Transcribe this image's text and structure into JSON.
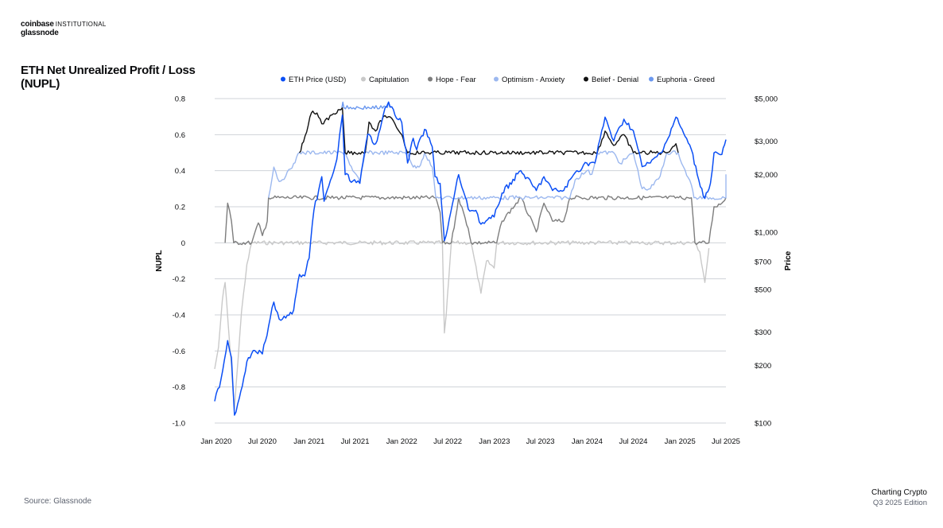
{
  "brand": {
    "line1_bold": "coinbase",
    "line1_light": "INSTITUTIONAL",
    "line2": "glassnode"
  },
  "title": "ETH Net Unrealized Profit / Loss (NUPL)",
  "source": "Source: Glassnode",
  "footer": {
    "line1": "Charting Crypto",
    "line2": "Q3 2025 Edition"
  },
  "colors": {
    "eth_price": "#0b4ff5",
    "capitulation": "#c9c9c9",
    "hope_fear": "#7d7d7d",
    "optimism_anxiety": "#9cb8ef",
    "belief_denial": "#111111",
    "euphoria_greed": "#6b98ef",
    "grid": "#cfd3d8",
    "text": "#0a0b0d"
  },
  "chart_data": {
    "type": "line",
    "x_start": "2019-12-26",
    "x_end": "2025-07-01",
    "x_tick_labels": [
      "Jan 2020",
      "Jul 2020",
      "Jan 2021",
      "Jul 2021",
      "Jan 2022",
      "Jul 2022",
      "Jan 2023",
      "Jul 2023",
      "Jan 2024",
      "Jul 2024",
      "Jan 2025",
      "Jul 2025"
    ],
    "x_tick_dates": [
      "2020-01-01",
      "2020-07-01",
      "2021-01-01",
      "2021-07-01",
      "2022-01-01",
      "2022-07-01",
      "2023-01-01",
      "2023-07-01",
      "2024-01-01",
      "2024-07-01",
      "2025-01-01",
      "2025-07-01"
    ],
    "y_left": {
      "label": "NUPL",
      "range": [
        -1.0,
        0.8
      ],
      "ticks": [
        0.8,
        0.6,
        0.4,
        0.2,
        0,
        -0.2,
        -0.4,
        -0.6,
        -0.8,
        -1.0
      ],
      "tick_labels": [
        "0.8",
        "0.6",
        "0.4",
        "0.2",
        "0",
        "-0.2",
        "-0.4",
        "-0.6",
        "-0.8",
        "-1.0"
      ]
    },
    "y_right": {
      "label": "Price",
      "scale": "log",
      "range": [
        100,
        5000
      ],
      "ticks": [
        5000,
        3000,
        2000,
        1000,
        700,
        500,
        300,
        200,
        100
      ],
      "tick_labels": [
        "$5,000",
        "$3,000",
        "$2,000",
        "$1,000",
        "$700",
        "$500",
        "$300",
        "$200",
        "$100"
      ]
    },
    "legend_position": "top",
    "series": [
      {
        "name": "ETH Price (USD)",
        "axis": "right",
        "color_key": "eth_price",
        "points": [
          [
            "2019-12-26",
            130
          ],
          [
            "2020-01-20",
            170
          ],
          [
            "2020-02-15",
            270
          ],
          [
            "2020-03-01",
            220
          ],
          [
            "2020-03-13",
            110
          ],
          [
            "2020-04-01",
            135
          ],
          [
            "2020-05-01",
            210
          ],
          [
            "2020-06-01",
            240
          ],
          [
            "2020-07-01",
            230
          ],
          [
            "2020-07-25",
            320
          ],
          [
            "2020-08-15",
            430
          ],
          [
            "2020-09-05",
            350
          ],
          [
            "2020-10-01",
            355
          ],
          [
            "2020-11-01",
            390
          ],
          [
            "2020-11-24",
            600
          ],
          [
            "2020-12-15",
            590
          ],
          [
            "2021-01-01",
            730
          ],
          [
            "2021-01-20",
            1300
          ],
          [
            "2021-02-20",
            1950
          ],
          [
            "2021-03-01",
            1450
          ],
          [
            "2021-04-01",
            1950
          ],
          [
            "2021-04-20",
            2400
          ],
          [
            "2021-05-12",
            4100
          ],
          [
            "2021-05-23",
            2000
          ],
          [
            "2021-06-22",
            1850
          ],
          [
            "2021-07-20",
            1800
          ],
          [
            "2021-08-20",
            3250
          ],
          [
            "2021-09-20",
            2900
          ],
          [
            "2021-10-20",
            4100
          ],
          [
            "2021-11-10",
            4800
          ],
          [
            "2021-12-05",
            4100
          ],
          [
            "2022-01-01",
            3750
          ],
          [
            "2022-01-24",
            2300
          ],
          [
            "2022-02-15",
            3100
          ],
          [
            "2022-03-01",
            2700
          ],
          [
            "2022-04-01",
            3450
          ],
          [
            "2022-05-01",
            2800
          ],
          [
            "2022-05-12",
            1950
          ],
          [
            "2022-06-01",
            1800
          ],
          [
            "2022-06-18",
            900
          ],
          [
            "2022-07-01",
            1050
          ],
          [
            "2022-08-13",
            2000
          ],
          [
            "2022-09-20",
            1320
          ],
          [
            "2022-10-20",
            1300
          ],
          [
            "2022-11-09",
            1100
          ],
          [
            "2022-12-31",
            1200
          ],
          [
            "2023-01-31",
            1600
          ],
          [
            "2023-04-15",
            2100
          ],
          [
            "2023-06-15",
            1650
          ],
          [
            "2023-07-15",
            1950
          ],
          [
            "2023-08-18",
            1650
          ],
          [
            "2023-10-01",
            1650
          ],
          [
            "2023-11-15",
            2050
          ],
          [
            "2023-12-31",
            2300
          ],
          [
            "2024-02-01",
            2300
          ],
          [
            "2024-03-12",
            4000
          ],
          [
            "2024-04-15",
            3000
          ],
          [
            "2024-05-25",
            3900
          ],
          [
            "2024-07-01",
            3400
          ],
          [
            "2024-08-05",
            2200
          ],
          [
            "2024-09-06",
            2300
          ],
          [
            "2024-10-15",
            2600
          ],
          [
            "2024-11-15",
            3100
          ],
          [
            "2024-12-16",
            4000
          ],
          [
            "2025-01-15",
            3300
          ],
          [
            "2025-02-15",
            2700
          ],
          [
            "2025-03-10",
            2000
          ],
          [
            "2025-04-09",
            1500
          ],
          [
            "2025-05-01",
            1800
          ],
          [
            "2025-05-15",
            2600
          ],
          [
            "2025-06-15",
            2550
          ],
          [
            "2025-07-01",
            3050
          ]
        ]
      },
      {
        "name": "Capitulation",
        "axis": "left",
        "color_key": "capitulation",
        "points": [
          [
            "2019-12-26",
            -0.7
          ],
          [
            "2020-01-10",
            -0.58
          ],
          [
            "2020-01-25",
            -0.32
          ],
          [
            "2020-02-05",
            -0.22
          ],
          [
            "2020-03-13",
            -0.92
          ],
          [
            "2020-03-20",
            -0.78
          ],
          [
            "2020-04-10",
            -0.38
          ],
          [
            "2020-05-01",
            -0.12
          ],
          [
            "2020-05-20",
            0.0
          ],
          [
            "2022-06-10",
            0.0
          ],
          [
            "2022-06-18",
            -0.5
          ],
          [
            "2022-06-25",
            -0.4
          ],
          [
            "2022-07-05",
            -0.2
          ],
          [
            "2022-07-15",
            0.0
          ],
          [
            "2022-10-01",
            0.0
          ],
          [
            "2022-11-09",
            -0.28
          ],
          [
            "2022-12-01",
            -0.1
          ],
          [
            "2022-12-31",
            -0.14
          ],
          [
            "2023-01-10",
            0.0
          ],
          [
            "2025-03-01",
            0.0
          ],
          [
            "2025-03-20",
            -0.05
          ],
          [
            "2025-04-09",
            -0.22
          ],
          [
            "2025-04-25",
            -0.03
          ]
        ]
      },
      {
        "name": "Hope - Fear",
        "axis": "left",
        "color_key": "hope_fear",
        "points": [
          [
            "2020-02-05",
            0.0
          ],
          [
            "2020-02-15",
            0.22
          ],
          [
            "2020-03-01",
            0.12
          ],
          [
            "2020-03-10",
            0.0
          ],
          [
            "2020-05-20",
            0.0
          ],
          [
            "2020-06-15",
            0.11
          ],
          [
            "2020-07-01",
            0.04
          ],
          [
            "2020-07-20",
            0.12
          ],
          [
            "2020-07-25",
            0.25
          ],
          [
            "2022-05-15",
            0.25
          ],
          [
            "2022-06-01",
            0.17
          ],
          [
            "2022-06-10",
            0.0
          ],
          [
            "2022-07-15",
            0.0
          ],
          [
            "2022-08-01",
            0.14
          ],
          [
            "2022-08-13",
            0.25
          ],
          [
            "2022-09-20",
            0.08
          ],
          [
            "2022-10-01",
            0.0
          ],
          [
            "2023-01-10",
            0.0
          ],
          [
            "2023-01-31",
            0.12
          ],
          [
            "2023-04-15",
            0.25
          ],
          [
            "2023-06-15",
            0.06
          ],
          [
            "2023-07-15",
            0.22
          ],
          [
            "2023-08-18",
            0.12
          ],
          [
            "2023-10-01",
            0.12
          ],
          [
            "2023-10-25",
            0.25
          ],
          [
            "2025-02-15",
            0.25
          ],
          [
            "2025-03-01",
            0.0
          ],
          [
            "2025-04-25",
            0.0
          ],
          [
            "2025-05-15",
            0.2
          ],
          [
            "2025-06-15",
            0.22
          ],
          [
            "2025-07-01",
            0.25
          ]
        ]
      },
      {
        "name": "Optimism - Anxiety",
        "axis": "left",
        "color_key": "optimism_anxiety",
        "points": [
          [
            "2020-07-25",
            0.25
          ],
          [
            "2020-08-15",
            0.42
          ],
          [
            "2020-09-05",
            0.34
          ],
          [
            "2020-10-01",
            0.37
          ],
          [
            "2020-11-01",
            0.44
          ],
          [
            "2020-11-24",
            0.5
          ],
          [
            "2021-05-23",
            0.5
          ],
          [
            "2021-06-22",
            0.4
          ],
          [
            "2021-07-20",
            0.34
          ],
          [
            "2021-08-10",
            0.5
          ],
          [
            "2022-01-24",
            0.5
          ],
          [
            "2022-02-15",
            0.42
          ],
          [
            "2022-03-10",
            0.42
          ],
          [
            "2022-04-01",
            0.5
          ],
          [
            "2022-05-01",
            0.42
          ],
          [
            "2022-05-15",
            0.25
          ],
          [
            "2022-08-13",
            0.25
          ],
          [
            "2023-04-15",
            0.25
          ],
          [
            "2023-10-25",
            0.25
          ],
          [
            "2023-11-15",
            0.35
          ],
          [
            "2023-12-31",
            0.4
          ],
          [
            "2024-01-20",
            0.38
          ],
          [
            "2024-02-10",
            0.5
          ],
          [
            "2024-04-15",
            0.5
          ],
          [
            "2024-05-10",
            0.44
          ],
          [
            "2024-07-01",
            0.5
          ],
          [
            "2024-08-05",
            0.3
          ],
          [
            "2024-09-06",
            0.3
          ],
          [
            "2024-10-15",
            0.37
          ],
          [
            "2024-11-10",
            0.5
          ],
          [
            "2024-12-25",
            0.5
          ],
          [
            "2025-01-15",
            0.42
          ],
          [
            "2025-02-15",
            0.32
          ],
          [
            "2025-02-25",
            0.25
          ],
          [
            "2025-07-01",
            0.25
          ],
          [
            "2025-07-01",
            0.38
          ]
        ]
      },
      {
        "name": "Belief - Denial",
        "axis": "left",
        "color_key": "belief_denial",
        "points": [
          [
            "2020-11-24",
            0.5
          ],
          [
            "2020-12-10",
            0.56
          ],
          [
            "2021-01-10",
            0.72
          ],
          [
            "2021-02-01",
            0.72
          ],
          [
            "2021-02-20",
            0.66
          ],
          [
            "2021-03-05",
            0.68
          ],
          [
            "2021-04-20",
            0.72
          ],
          [
            "2021-05-12",
            0.75
          ],
          [
            "2021-05-23",
            0.5
          ],
          [
            "2021-08-10",
            0.5
          ],
          [
            "2021-08-25",
            0.67
          ],
          [
            "2021-09-20",
            0.62
          ],
          [
            "2021-10-20",
            0.7
          ],
          [
            "2021-11-10",
            0.7
          ],
          [
            "2021-12-05",
            0.66
          ],
          [
            "2022-01-01",
            0.6
          ],
          [
            "2022-01-24",
            0.5
          ],
          [
            "2024-02-10",
            0.5
          ],
          [
            "2024-03-12",
            0.62
          ],
          [
            "2024-04-15",
            0.54
          ],
          [
            "2024-05-25",
            0.6
          ],
          [
            "2024-07-01",
            0.5
          ],
          [
            "2024-11-10",
            0.5
          ],
          [
            "2024-12-16",
            0.55
          ],
          [
            "2024-12-25",
            0.5
          ]
        ]
      },
      {
        "name": "Euphoria - Greed",
        "axis": "left",
        "color_key": "euphoria_greed",
        "points": [
          [
            "2021-05-10",
            0.75
          ],
          [
            "2021-05-14",
            0.78
          ],
          [
            "2021-05-18",
            0.75
          ],
          [
            "2021-11-05",
            0.75
          ],
          [
            "2021-11-10",
            0.78
          ],
          [
            "2021-11-16",
            0.75
          ]
        ]
      }
    ]
  }
}
